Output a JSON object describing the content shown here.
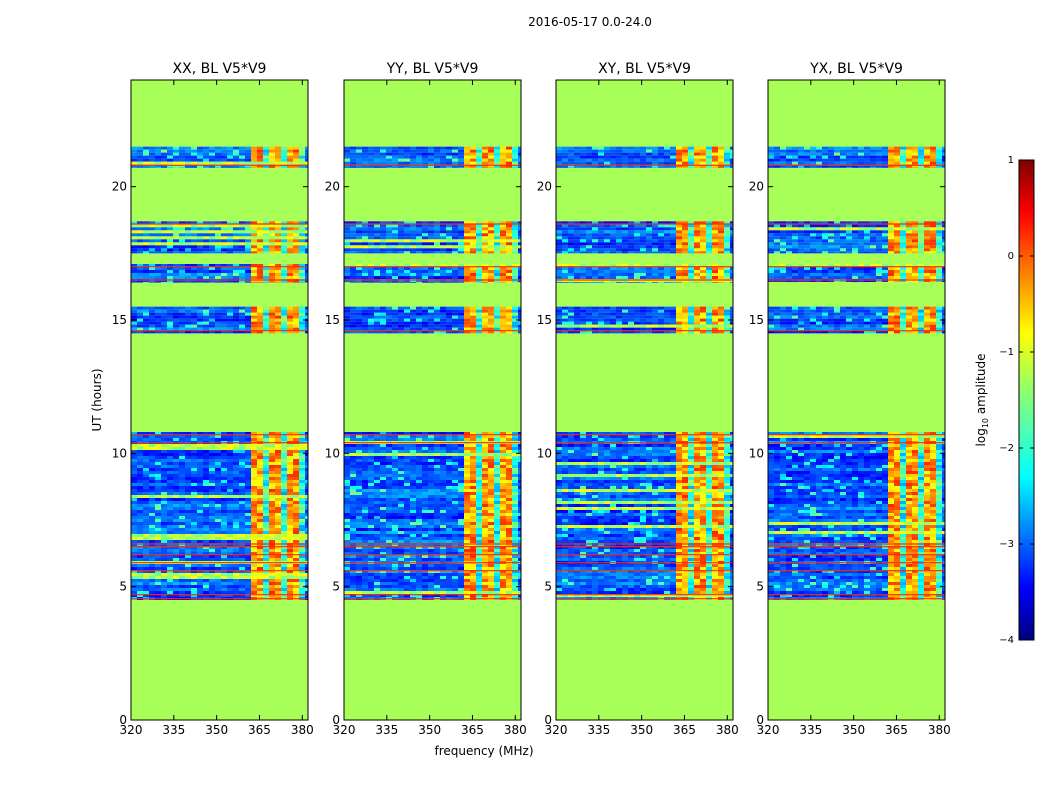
{
  "figure_title": "2016-05-17 0.0-24.0",
  "xlabel": "frequency (MHz)",
  "ylabel": "UT (hours)",
  "colorbar": {
    "label_prefix": "log",
    "label_sub": "10",
    "label_suffix": " amplitude",
    "ticks": [
      1,
      0,
      -1,
      -2,
      -3,
      -4
    ],
    "tick_labels": [
      "1",
      "0",
      "−1",
      "−2",
      "−3",
      "−4"
    ],
    "range": [
      -4,
      1
    ],
    "colormap": "jet"
  },
  "chart_data": [
    {
      "type": "heatmap",
      "title": "XX, BL V5*V9",
      "x_range": [
        320,
        382
      ],
      "y_range": [
        0,
        24
      ],
      "x_ticks": [
        320,
        335,
        350,
        365,
        380
      ],
      "y_ticks": [
        0,
        5,
        10,
        15,
        20
      ],
      "background_value": -1.3,
      "rfi_band_mhz": [
        361,
        381
      ],
      "data_blocks_ut": [
        [
          4.5,
          6.3
        ],
        [
          6.3,
          10.8
        ],
        [
          14.5,
          15.5
        ],
        [
          16.4,
          17.1
        ],
        [
          17.5,
          18.7
        ],
        [
          20.7,
          21.5
        ]
      ],
      "flagged_lines_ut": [
        4.55,
        4.7,
        5.6,
        5.9,
        6.2,
        6.5,
        6.6,
        10.4,
        10.7,
        14.6,
        16.5,
        17.0,
        18.6,
        20.8
      ]
    },
    {
      "type": "heatmap",
      "title": "YY, BL V5*V9",
      "x_range": [
        320,
        382
      ],
      "y_range": [
        0,
        24
      ],
      "x_ticks": [
        320,
        335,
        350,
        365,
        380
      ],
      "y_ticks": [
        0,
        5,
        10,
        15,
        20
      ],
      "background_value": -1.3,
      "rfi_band_mhz": [
        361,
        381
      ],
      "data_blocks_ut": [
        [
          4.5,
          6.3
        ],
        [
          6.3,
          10.8
        ],
        [
          14.5,
          15.5
        ],
        [
          16.4,
          17.1
        ],
        [
          17.5,
          18.7
        ],
        [
          20.7,
          21.5
        ]
      ],
      "flagged_lines_ut": [
        4.55,
        4.7,
        5.6,
        5.9,
        6.2,
        6.5,
        6.6,
        10.4,
        10.7,
        14.6,
        16.5,
        17.0,
        18.6,
        20.8
      ]
    },
    {
      "type": "heatmap",
      "title": "XY, BL V5*V9",
      "x_range": [
        320,
        382
      ],
      "y_range": [
        0,
        24
      ],
      "x_ticks": [
        320,
        335,
        350,
        365,
        380
      ],
      "y_ticks": [
        0,
        5,
        10,
        15,
        20
      ],
      "background_value": -1.3,
      "rfi_band_mhz": [
        361,
        381
      ],
      "data_blocks_ut": [
        [
          4.5,
          6.3
        ],
        [
          6.3,
          10.8
        ],
        [
          14.5,
          15.5
        ],
        [
          16.4,
          17.1
        ],
        [
          17.5,
          18.7
        ],
        [
          20.7,
          21.5
        ]
      ],
      "flagged_lines_ut": [
        4.55,
        4.7,
        5.6,
        5.9,
        6.2,
        6.5,
        6.6,
        10.4,
        10.7,
        14.6,
        16.5,
        17.0,
        18.6,
        20.8
      ]
    },
    {
      "type": "heatmap",
      "title": "YX, BL V5*V9",
      "x_range": [
        320,
        382
      ],
      "y_range": [
        0,
        24
      ],
      "x_ticks": [
        320,
        335,
        350,
        365,
        380
      ],
      "y_ticks": [
        0,
        5,
        10,
        15,
        20
      ],
      "background_value": -1.3,
      "rfi_band_mhz": [
        361,
        381
      ],
      "data_blocks_ut": [
        [
          4.5,
          6.3
        ],
        [
          6.3,
          10.8
        ],
        [
          14.5,
          15.5
        ],
        [
          16.4,
          17.1
        ],
        [
          17.5,
          18.7
        ],
        [
          20.7,
          21.5
        ]
      ],
      "flagged_lines_ut": [
        4.55,
        4.7,
        5.6,
        5.9,
        6.2,
        6.5,
        6.6,
        10.4,
        10.7,
        14.6,
        16.5,
        17.0,
        18.6,
        20.8
      ]
    }
  ]
}
